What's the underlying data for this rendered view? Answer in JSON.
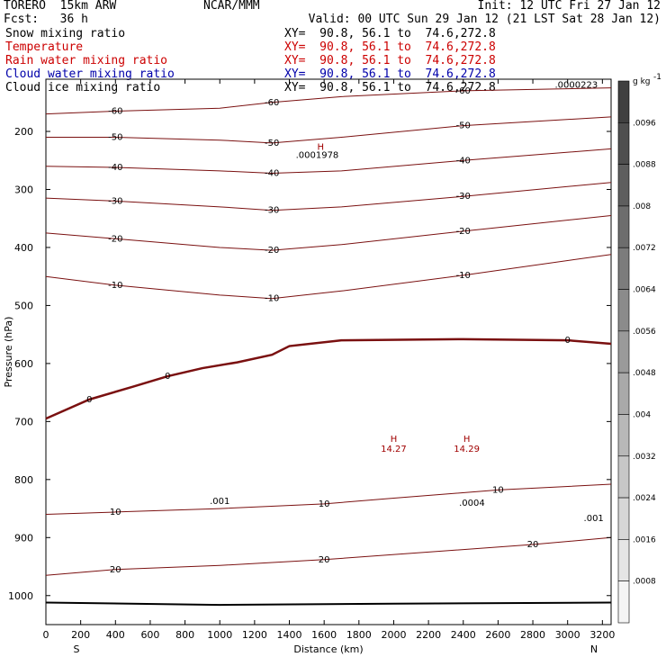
{
  "header": {
    "model": "TORERO",
    "resolution": "15km ARW",
    "center": "NCAR/MMM",
    "init": "Init: 12 UTC Fri 27 Jan 12",
    "fcst_label": "Fcst:",
    "fcst_value": "36 h",
    "valid": "Valid: 00 UTC Sun 29 Jan 12 (21 LST Sat 28 Jan 12)"
  },
  "legend": [
    {
      "label": "Snow mixing ratio",
      "xy": "XY=  90.8, 56.1 to  74.6,272.8",
      "color": "#000000"
    },
    {
      "label": "Temperature",
      "xy": "XY=  90.8, 56.1 to  74.6,272.8",
      "color": "#cc0000"
    },
    {
      "label": "Rain water mixing ratio",
      "xy": "XY=  90.8, 56.1 to  74.6,272.8",
      "color": "#cc0000"
    },
    {
      "label": "Cloud water mixing ratio",
      "xy": "XY=  90.8, 56.1 to  74.6,272.8",
      "color": "#0000aa"
    },
    {
      "label": "Cloud ice mixing ratio",
      "xy": "XY=  90.8, 56.1 to  74.6,272.8",
      "color": "#000000"
    }
  ],
  "chart_data": {
    "type": "contour-cross-section",
    "xlabel": "Distance (km)",
    "ylabel": "Pressure (hPa)",
    "xlim": [
      0,
      3250
    ],
    "ylim": [
      1050,
      110
    ],
    "x_ticks": [
      0,
      200,
      400,
      600,
      800,
      1000,
      1200,
      1400,
      1600,
      1800,
      2000,
      2200,
      2400,
      2600,
      2800,
      3000,
      3200
    ],
    "y_ticks": [
      200,
      300,
      400,
      500,
      600,
      700,
      800,
      900,
      1000
    ],
    "x_end_labels": {
      "left": "S",
      "right": "N"
    },
    "colorbar": {
      "units": "g kg",
      "units_exp": "-1",
      "labels": [
        ".0096",
        ".0088",
        ".008",
        ".0072",
        ".0064",
        ".0056",
        ".0048",
        ".004",
        ".0032",
        ".0024",
        ".0016",
        ".0008"
      ],
      "top_color": "#404040",
      "bottom_color": "#f4f4f4"
    },
    "temperature_contours": [
      {
        "level": -60,
        "points": [
          [
            0,
            170
          ],
          [
            400,
            165
          ],
          [
            1000,
            160
          ],
          [
            1300,
            150
          ],
          [
            1700,
            140
          ],
          [
            2400,
            130
          ],
          [
            3250,
            125
          ]
        ]
      },
      {
        "level": -50,
        "points": [
          [
            0,
            210
          ],
          [
            400,
            210
          ],
          [
            1000,
            215
          ],
          [
            1300,
            220
          ],
          [
            1700,
            210
          ],
          [
            2400,
            190
          ],
          [
            3250,
            175
          ]
        ]
      },
      {
        "level": -40,
        "points": [
          [
            0,
            260
          ],
          [
            400,
            262
          ],
          [
            1000,
            268
          ],
          [
            1300,
            272
          ],
          [
            1700,
            268
          ],
          [
            2400,
            250
          ],
          [
            3250,
            230
          ]
        ]
      },
      {
        "level": -30,
        "points": [
          [
            0,
            315
          ],
          [
            400,
            320
          ],
          [
            1000,
            330
          ],
          [
            1300,
            336
          ],
          [
            1700,
            330
          ],
          [
            2400,
            312
          ],
          [
            3250,
            288
          ]
        ]
      },
      {
        "level": -20,
        "points": [
          [
            0,
            375
          ],
          [
            400,
            385
          ],
          [
            1000,
            400
          ],
          [
            1300,
            405
          ],
          [
            1700,
            395
          ],
          [
            2400,
            372
          ],
          [
            3250,
            345
          ]
        ]
      },
      {
        "level": -10,
        "points": [
          [
            0,
            450
          ],
          [
            400,
            465
          ],
          [
            1000,
            482
          ],
          [
            1300,
            488
          ],
          [
            1700,
            475
          ],
          [
            2400,
            448
          ],
          [
            3250,
            412
          ]
        ]
      },
      {
        "level": 0,
        "points": [
          [
            0,
            695
          ],
          [
            250,
            662
          ],
          [
            500,
            640
          ],
          [
            700,
            622
          ],
          [
            900,
            608
          ],
          [
            1100,
            598
          ],
          [
            1300,
            585
          ],
          [
            1400,
            570
          ],
          [
            1700,
            560
          ],
          [
            2400,
            558
          ],
          [
            3000,
            560
          ],
          [
            3250,
            566
          ]
        ]
      },
      {
        "level": 10,
        "points": [
          [
            0,
            860
          ],
          [
            400,
            856
          ],
          [
            1000,
            850
          ],
          [
            1600,
            842
          ],
          [
            2000,
            832
          ],
          [
            2600,
            818
          ],
          [
            3250,
            808
          ]
        ]
      },
      {
        "level": 20,
        "points": [
          [
            0,
            965
          ],
          [
            400,
            955
          ],
          [
            1000,
            948
          ],
          [
            1600,
            938
          ],
          [
            2200,
            925
          ],
          [
            2800,
            912
          ],
          [
            3250,
            900
          ]
        ]
      }
    ],
    "surface_line": {
      "points": [
        [
          0,
          1012
        ],
        [
          1000,
          1016
        ],
        [
          2000,
          1014
        ],
        [
          3250,
          1012
        ]
      ]
    },
    "annotations": [
      {
        "text": "H",
        "x": 1580,
        "y": 232
      },
      {
        "text": ".0001978",
        "x": 1560,
        "y": 246
      },
      {
        "text": "H",
        "x": 2000,
        "y": 735
      },
      {
        "text": "14.27",
        "x": 2000,
        "y": 752
      },
      {
        "text": "H",
        "x": 2420,
        "y": 735
      },
      {
        "text": "14.29",
        "x": 2420,
        "y": 752
      },
      {
        "text": ".0000223",
        "x": 3050,
        "y": 125
      },
      {
        "text": ".001",
        "x": 1000,
        "y": 842
      },
      {
        "text": ".0004",
        "x": 2450,
        "y": 845
      },
      {
        "text": ".001",
        "x": 3150,
        "y": 872
      }
    ]
  }
}
